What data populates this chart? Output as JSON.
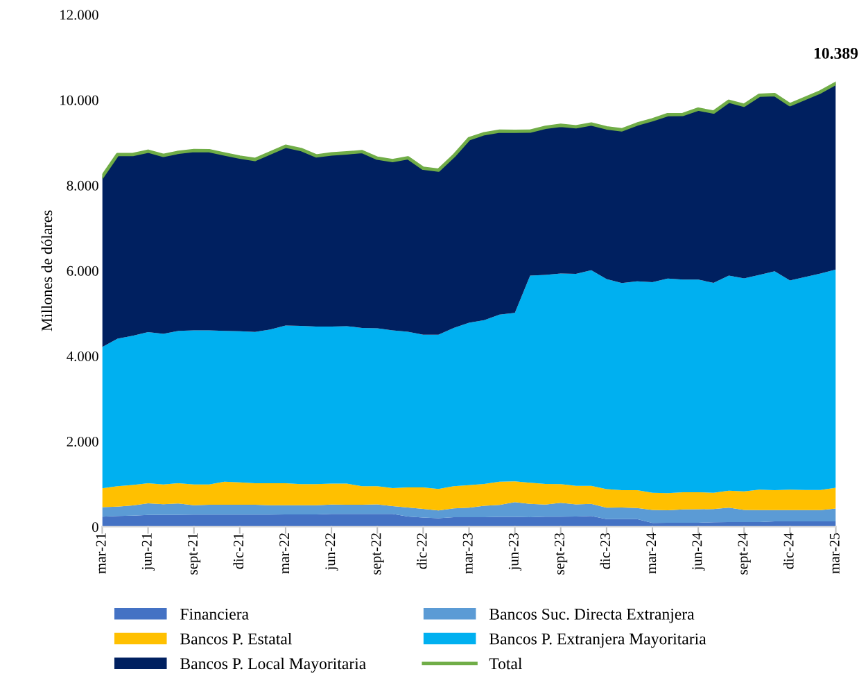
{
  "chart_data": {
    "type": "area",
    "stacked": true,
    "ylabel": "Millones de dólares",
    "categories": [
      "mar-21",
      null,
      null,
      "jun-21",
      null,
      null,
      "sept-21",
      null,
      null,
      "dic-21",
      null,
      null,
      "mar-22",
      null,
      null,
      "jun-22",
      null,
      null,
      "sept-22",
      null,
      null,
      "dic-22",
      null,
      null,
      "mar-23",
      null,
      null,
      "jun-23",
      null,
      null,
      "sept-23",
      null,
      null,
      "dic-23",
      null,
      null,
      "mar-24",
      null,
      null,
      "jun-24",
      null,
      null,
      "sept-24",
      null,
      null,
      "dic-24",
      null,
      null,
      "mar-25"
    ],
    "series": [
      {
        "name": "Financiera",
        "color": "#4472c4",
        "values": [
          235,
          250,
          260,
          275,
          280,
          280,
          285,
          285,
          285,
          285,
          285,
          285,
          290,
          290,
          290,
          300,
          300,
          300,
          300,
          300,
          240,
          215,
          200,
          225,
          225,
          225,
          230,
          230,
          225,
          235,
          235,
          240,
          250,
          180,
          180,
          180,
          90,
          95,
          95,
          95,
          105,
          110,
          110,
          110,
          125,
          125,
          125,
          125,
          125
        ]
      },
      {
        "name": "Bancos Suc. Directa Extranjera",
        "color": "#5b9bd5",
        "values": [
          225,
          220,
          240,
          275,
          250,
          265,
          220,
          230,
          230,
          230,
          230,
          220,
          215,
          215,
          215,
          220,
          215,
          215,
          225,
          185,
          210,
          205,
          180,
          205,
          220,
          265,
          280,
          345,
          310,
          285,
          325,
          285,
          285,
          265,
          270,
          260,
          305,
          290,
          310,
          315,
          310,
          335,
          285,
          280,
          265,
          265,
          265,
          265,
          300
        ]
      },
      {
        "name": "Bancos P. Estatal",
        "color": "#ffc000",
        "values": [
          440,
          480,
          480,
          470,
          460,
          475,
          485,
          475,
          540,
          525,
          505,
          515,
          515,
          495,
          495,
          490,
          495,
          435,
          425,
          420,
          470,
          500,
          505,
          520,
          530,
          515,
          545,
          490,
          495,
          485,
          440,
          435,
          425,
          435,
          405,
          415,
          400,
          405,
          405,
          400,
          380,
          400,
          435,
          480,
          465,
          480,
          470,
          470,
          490
        ]
      },
      {
        "name": "Bancos P. Extranjera Mayoritaria",
        "color": "#00b0f0",
        "values": [
          3310,
          3455,
          3495,
          3540,
          3530,
          3570,
          3610,
          3610,
          3535,
          3540,
          3545,
          3600,
          3695,
          3705,
          3690,
          3680,
          3690,
          3710,
          3700,
          3695,
          3650,
          3580,
          3615,
          3710,
          3805,
          3835,
          3915,
          3945,
          4855,
          4895,
          4935,
          4965,
          5050,
          4925,
          4855,
          4895,
          4935,
          5025,
          4980,
          4980,
          4920,
          5040,
          4990,
          5030,
          5130,
          4900,
          4990,
          5075,
          5110
        ]
      },
      {
        "name": "Bancos P. Local Mayoritaria",
        "color": "#002060",
        "values": [
          3990,
          4315,
          4245,
          4240,
          4180,
          4185,
          4215,
          4210,
          4145,
          4080,
          4040,
          4140,
          4200,
          4135,
          4000,
          4045,
          4060,
          4130,
          3985,
          3980,
          4075,
          3900,
          3855,
          4030,
          4310,
          4370,
          4300,
          4255,
          3385,
          3460,
          3470,
          3445,
          3425,
          3540,
          3590,
          3685,
          3805,
          3840,
          3870,
          3995,
          4000,
          4085,
          4055,
          4210,
          4140,
          4120,
          4190,
          4255,
          4364
        ]
      },
      {
        "name": "Total",
        "type": "line",
        "color": "#70ad47",
        "values": [
          8200,
          8720,
          8720,
          8800,
          8700,
          8775,
          8815,
          8810,
          8735,
          8660,
          8605,
          8760,
          8915,
          8840,
          8690,
          8735,
          8760,
          8790,
          8635,
          8580,
          8645,
          8400,
          8355,
          8690,
          9090,
          9210,
          9270,
          9265,
          9270,
          9360,
          9405,
          9370,
          9435,
          9345,
          9300,
          9435,
          9535,
          9655,
          9660,
          9785,
          9715,
          9970,
          9875,
          10110,
          10125,
          9890,
          10040,
          10190,
          10389
        ],
        "value_labels": [
          null,
          null,
          null,
          null,
          null,
          null,
          null,
          null,
          null,
          null,
          null,
          null,
          null,
          null,
          null,
          null,
          null,
          null,
          null,
          null,
          null,
          null,
          null,
          null,
          null,
          null,
          null,
          null,
          null,
          null,
          null,
          null,
          null,
          null,
          null,
          null,
          null,
          null,
          null,
          null,
          null,
          null,
          null,
          null,
          null,
          null,
          null,
          null,
          "10.389"
        ]
      }
    ],
    "ylim": [
      0,
      12000
    ],
    "yticks": [
      {
        "value": 0,
        "label": "0"
      },
      {
        "value": 2000,
        "label": "2.000"
      },
      {
        "value": 4000,
        "label": "4.000"
      },
      {
        "value": 6000,
        "label": "6.000"
      },
      {
        "value": 8000,
        "label": "8.000"
      },
      {
        "value": 10000,
        "label": "10.000"
      },
      {
        "value": 12000,
        "label": "12.000"
      }
    ],
    "grid": false,
    "legend": "bottom"
  }
}
